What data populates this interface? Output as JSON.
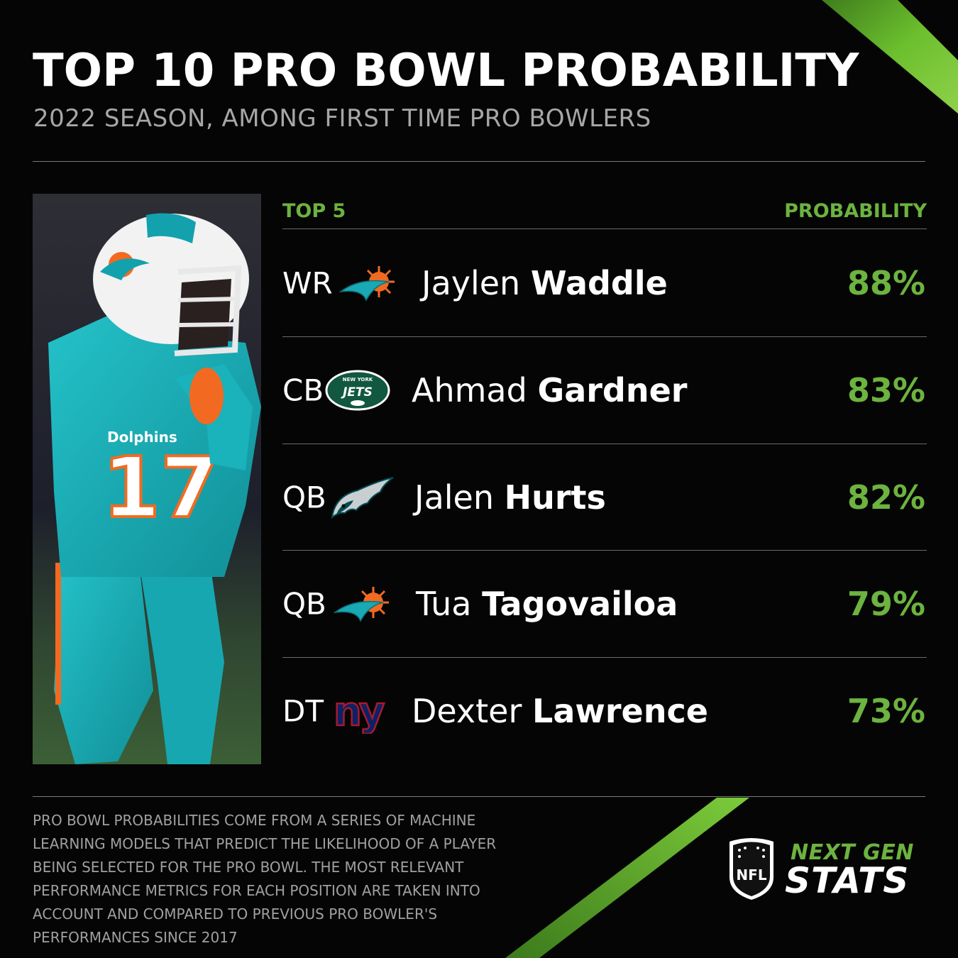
{
  "header": {
    "title": "TOP 10 PRO BOWL PROBABILITY",
    "subtitle": "2022 SEASON, AMONG FIRST TIME PRO BOWLERS"
  },
  "table": {
    "left_heading": "TOP 5",
    "right_heading": "PROBABILITY",
    "rows": [
      {
        "position": "WR",
        "team_icon": "dolphins-logo-icon",
        "first_name": "Jaylen",
        "last_name": "Waddle",
        "probability": "88%"
      },
      {
        "position": "CB",
        "team_icon": "jets-logo-icon",
        "first_name": "Ahmad",
        "last_name": "Gardner",
        "probability": "83%"
      },
      {
        "position": "QB",
        "team_icon": "eagles-logo-icon",
        "first_name": "Jalen",
        "last_name": "Hurts",
        "probability": "82%"
      },
      {
        "position": "QB",
        "team_icon": "dolphins-logo-icon",
        "first_name": "Tua",
        "last_name": "Tagovailoa",
        "probability": "79%"
      },
      {
        "position": "DT",
        "team_icon": "giants-logo-icon",
        "first_name": "Dexter",
        "last_name": "Lawrence",
        "probability": "73%"
      }
    ]
  },
  "footnote": "PRO BOWL PROBABILITIES COME FROM A SERIES OF MACHINE LEARNING MODELS THAT PREDICT THE LIKELIHOOD OF A PLAYER BEING SELECTED FOR THE PRO BOWL. THE MOST RELEVANT PERFORMANCE METRICS FOR EACH POSITION ARE TAKEN INTO ACCOUNT AND COMPARED TO PREVIOUS PRO BOWLER'S PERFORMANCES SINCE 2017",
  "brand": {
    "line1": "NEXT GEN",
    "line2": "STATS"
  },
  "colors": {
    "accent_green": "#6cb33f",
    "background": "#050505",
    "dolphins_aqua": "#18a9b5",
    "dolphins_orange": "#f26a21",
    "jets_green": "#125740",
    "giants_blue": "#0b2265",
    "giants_red": "#a71930",
    "eagles_teal": "#004c54"
  }
}
